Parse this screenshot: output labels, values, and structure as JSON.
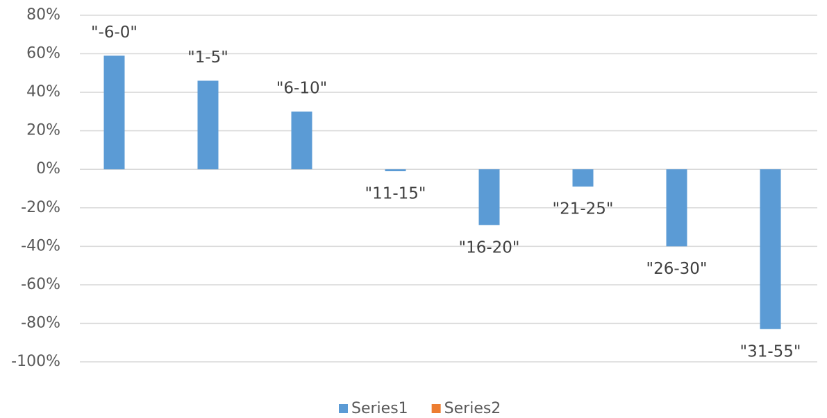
{
  "chart_data": {
    "type": "bar",
    "categories": [
      "\"-6-0\"",
      "\"1-5\"",
      "\"6-10\"",
      "\"11-15\"",
      "\"16-20\"",
      "\"21-25\"",
      "\"26-30\"",
      "\"31-55\""
    ],
    "series": [
      {
        "name": "Series1",
        "color": "#5b9bd5",
        "values": [
          59,
          46,
          30,
          -1,
          -29,
          -9,
          -40,
          -83
        ]
      },
      {
        "name": "Series2",
        "color": "#ed7d31",
        "values": [
          null,
          null,
          null,
          null,
          null,
          null,
          null,
          null
        ]
      }
    ],
    "ylim": [
      -100,
      80
    ],
    "yticks": [
      {
        "value": -100,
        "label": "-100%"
      },
      {
        "value": -80,
        "label": "-80%"
      },
      {
        "value": -60,
        "label": "-60%"
      },
      {
        "value": -40,
        "label": "-40%"
      },
      {
        "value": -20,
        "label": "-20%"
      },
      {
        "value": 0,
        "label": "0%"
      },
      {
        "value": 20,
        "label": "20%"
      },
      {
        "value": 40,
        "label": "40%"
      },
      {
        "value": 60,
        "label": "60%"
      },
      {
        "value": 80,
        "label": "80%"
      }
    ],
    "grid": true,
    "legend": "bottom"
  }
}
